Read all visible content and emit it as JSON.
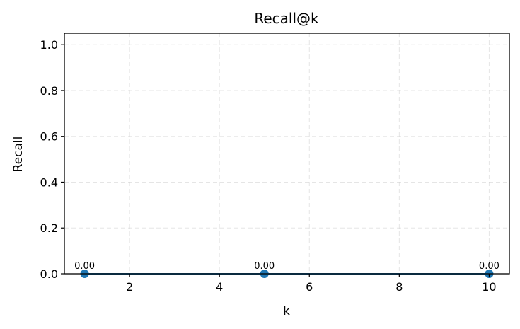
{
  "chart_data": {
    "type": "line",
    "title": "Recall@k",
    "xlabel": "k",
    "ylabel": "Recall",
    "xlim": [
      0.55,
      10.45
    ],
    "ylim": [
      0,
      1.05
    ],
    "xticks": [
      2,
      4,
      6,
      8,
      10
    ],
    "xtick_labels": [
      "2",
      "4",
      "6",
      "8",
      "10"
    ],
    "yticks": [
      0.0,
      0.2,
      0.4,
      0.6,
      0.8,
      1.0
    ],
    "ytick_labels": [
      "0.0",
      "0.2",
      "0.4",
      "0.6",
      "0.8",
      "1.0"
    ],
    "grid": true,
    "series": [
      {
        "x": [
          1,
          5,
          10
        ],
        "y": [
          0.0,
          0.0,
          0.0
        ],
        "labels": [
          "0.00",
          "0.00",
          "0.00"
        ],
        "color": "#1f77b4",
        "marker": "circle"
      }
    ]
  }
}
